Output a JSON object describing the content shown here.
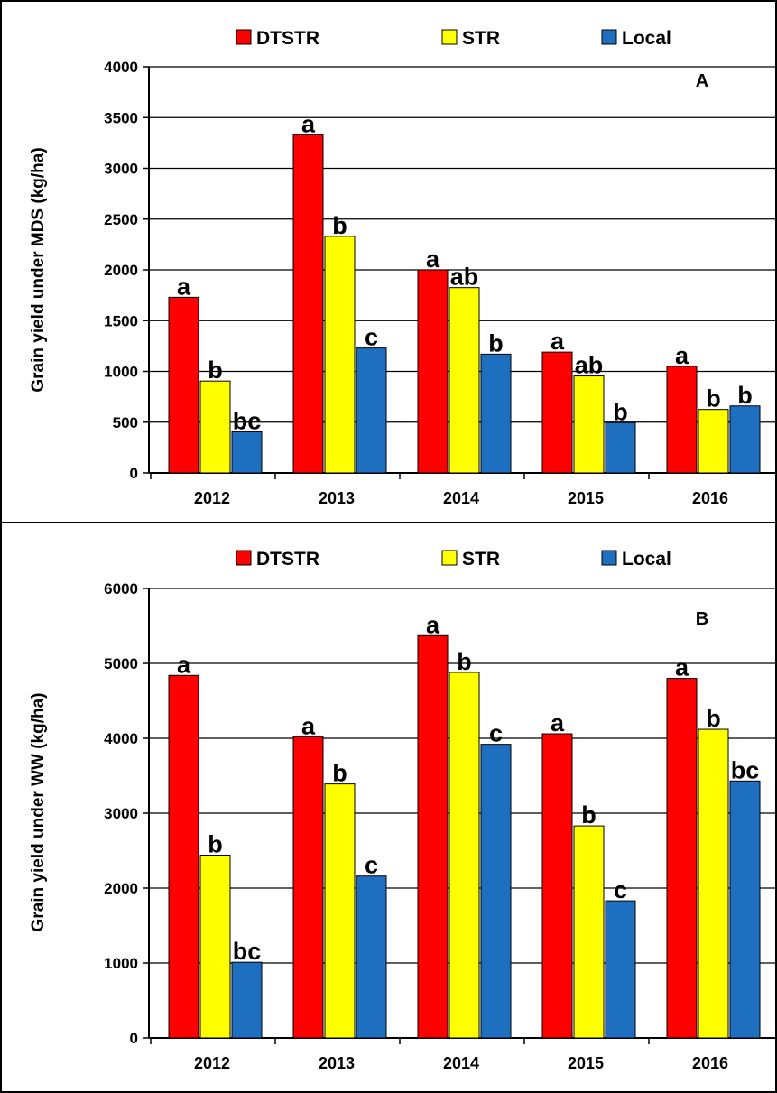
{
  "chart_data": [
    {
      "type": "bar",
      "panel_label": "A",
      "title": "",
      "xlabel": "",
      "ylabel": "Grain yield under MDS (kg/ha)",
      "ylim": [
        0,
        4000
      ],
      "yticks": [
        0,
        500,
        1000,
        1500,
        2000,
        2500,
        3000,
        3500,
        4000
      ],
      "grid": true,
      "legend_position": "top",
      "categories": [
        "2012",
        "2013",
        "2014",
        "2015",
        "2016"
      ],
      "series": [
        {
          "name": "DTSTR",
          "color": "#ff0000",
          "values": [
            1730,
            3330,
            2000,
            1190,
            1050
          ],
          "letters": [
            "a",
            "a",
            "a",
            "a",
            "a"
          ]
        },
        {
          "name": "STR",
          "color": "#ffff00",
          "values": [
            905,
            2330,
            1825,
            955,
            625
          ],
          "letters": [
            "b",
            "b",
            "ab",
            "ab",
            "b"
          ]
        },
        {
          "name": "Local",
          "color": "#1f6fc0",
          "values": [
            405,
            1230,
            1170,
            495,
            660
          ],
          "letters": [
            "bc",
            "c",
            "b",
            "b",
            "b"
          ]
        }
      ]
    },
    {
      "type": "bar",
      "panel_label": "B",
      "title": "",
      "xlabel": "",
      "ylabel": "Grain yield under WW (kg/ha)",
      "ylim": [
        0,
        6000
      ],
      "yticks": [
        0,
        1000,
        2000,
        3000,
        4000,
        5000,
        6000
      ],
      "grid": true,
      "legend_position": "top",
      "categories": [
        "2012",
        "2013",
        "2014",
        "2015",
        "2016"
      ],
      "series": [
        {
          "name": "DTSTR",
          "color": "#ff0000",
          "values": [
            4840,
            4020,
            5370,
            4060,
            4800
          ],
          "letters": [
            "a",
            "a",
            "a",
            "a",
            "a"
          ]
        },
        {
          "name": "STR",
          "color": "#ffff00",
          "values": [
            2440,
            3390,
            4880,
            2830,
            4120
          ],
          "letters": [
            "b",
            "b",
            "b",
            "b",
            "b"
          ]
        },
        {
          "name": "Local",
          "color": "#1f6fc0",
          "values": [
            1010,
            2160,
            3920,
            1830,
            3430
          ],
          "letters": [
            "bc",
            "c",
            "c",
            "c",
            "bc"
          ]
        }
      ]
    }
  ]
}
